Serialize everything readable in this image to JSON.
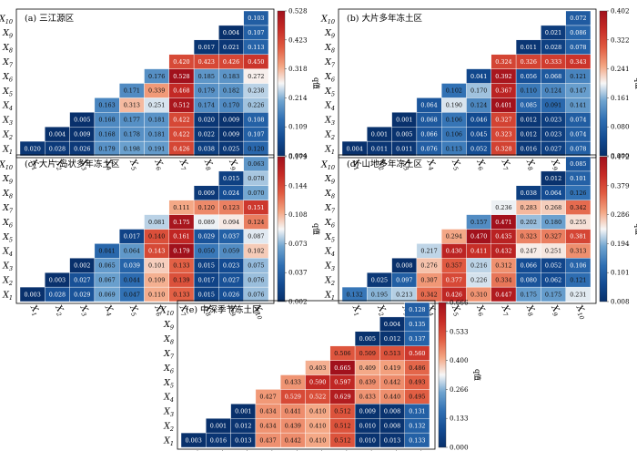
{
  "variable_labels": [
    "X1",
    "X2",
    "X3",
    "X4",
    "X5",
    "X6",
    "X7",
    "X8",
    "X9",
    "X10"
  ],
  "colorbar_label": "q值",
  "colormap": {
    "low": "#08306b",
    "mid": "#f7f7f7",
    "high": "#b2182b"
  },
  "chart_data": [
    {
      "type": "heatmap",
      "title": "(a) 三江源区",
      "variables": [
        "X1",
        "X2",
        "X3",
        "X4",
        "X5",
        "X6",
        "X7",
        "X8",
        "X9",
        "X10"
      ],
      "colorbar": {
        "min": 0.004,
        "max": 0.528,
        "ticks": [
          "0.004",
          "0.109",
          "0.214",
          "0.318",
          "0.423",
          "0.528"
        ],
        "label": "q值"
      },
      "matrix": [
        [
          "0.020",
          "0.028",
          "0.026",
          "0.179",
          "0.198",
          "0.191",
          "0.426",
          "0.038",
          "0.025",
          "0.120"
        ],
        [
          null,
          "0.004",
          "0.009",
          "0.168",
          "0.178",
          "0.181",
          "0.422",
          "0.022",
          "0.009",
          "0.107"
        ],
        [
          null,
          null,
          "0.005",
          "0.168",
          "0.177",
          "0.181",
          "0.422",
          "0.020",
          "0.009",
          "0.108"
        ],
        [
          null,
          null,
          null,
          "0.163",
          "0.313",
          "0.251",
          "0.512",
          "0.174",
          "0.170",
          "0.226"
        ],
        [
          null,
          null,
          null,
          null,
          "0.171",
          "0.339",
          "0.468",
          "0.179",
          "0.182",
          "0.238"
        ],
        [
          null,
          null,
          null,
          null,
          null,
          "0.176",
          "0.528",
          "0.185",
          "0.183",
          "0.272"
        ],
        [
          null,
          null,
          null,
          null,
          null,
          null,
          "0.420",
          "0.423",
          "0.426",
          "0.450"
        ],
        [
          null,
          null,
          null,
          null,
          null,
          null,
          null,
          "0.017",
          "0.021",
          "0.113"
        ],
        [
          null,
          null,
          null,
          null,
          null,
          null,
          null,
          null,
          "0.004",
          "0.107"
        ],
        [
          null,
          null,
          null,
          null,
          null,
          null,
          null,
          null,
          null,
          "0.103"
        ]
      ]
    },
    {
      "type": "heatmap",
      "title": "(b) 大片多年冻土区",
      "variables": [
        "X1",
        "X2",
        "X3",
        "X4",
        "X5",
        "X6",
        "X7",
        "X8",
        "X9",
        "X10"
      ],
      "colorbar": {
        "min": 0.0,
        "max": 0.402,
        "ticks": [
          "0.000",
          "0.080",
          "0.161",
          "0.241",
          "0.322",
          "0.402"
        ],
        "label": "q值"
      },
      "matrix": [
        [
          "0.004",
          "0.011",
          "0.011",
          "0.076",
          "0.113",
          "0.052",
          "0.328",
          "0.016",
          "0.027",
          "0.078"
        ],
        [
          null,
          "0.001",
          "0.005",
          "0.066",
          "0.106",
          "0.045",
          "0.323",
          "0.012",
          "0.023",
          "0.074"
        ],
        [
          null,
          null,
          "0.001",
          "0.068",
          "0.106",
          "0.046",
          "0.327",
          "0.012",
          "0.023",
          "0.074"
        ],
        [
          null,
          null,
          null,
          "0.064",
          "0.190",
          "0.124",
          "0.401",
          "0.085",
          "0.091",
          "0.141"
        ],
        [
          null,
          null,
          null,
          null,
          "0.102",
          "0.170",
          "0.367",
          "0.110",
          "0.124",
          "0.147"
        ],
        [
          null,
          null,
          null,
          null,
          null,
          "0.041",
          "0.392",
          "0.056",
          "0.068",
          "0.121"
        ],
        [
          null,
          null,
          null,
          null,
          null,
          null,
          "0.324",
          "0.326",
          "0.333",
          "0.343"
        ],
        [
          null,
          null,
          null,
          null,
          null,
          null,
          null,
          "0.011",
          "0.028",
          "0.078"
        ],
        [
          null,
          null,
          null,
          null,
          null,
          null,
          null,
          null,
          "0.021",
          "0.086"
        ],
        [
          null,
          null,
          null,
          null,
          null,
          null,
          null,
          null,
          null,
          "0.072"
        ]
      ]
    },
    {
      "type": "heatmap",
      "title": "(c) 大片-岛状多年冻土区",
      "variables": [
        "X1",
        "X2",
        "X3",
        "X4",
        "X5",
        "X6",
        "X7",
        "X8",
        "X9",
        "X10"
      ],
      "colorbar": {
        "min": 0.002,
        "max": 0.179,
        "ticks": [
          "0.002",
          "0.037",
          "0.073",
          "0.108",
          "0.144",
          "0.179"
        ],
        "label": "q值"
      },
      "matrix": [
        [
          "0.003",
          "0.028",
          "0.029",
          "0.069",
          "0.047",
          "0.110",
          "0.133",
          "0.015",
          "0.026",
          "0.076"
        ],
        [
          null,
          "0.003",
          "0.027",
          "0.067",
          "0.044",
          "0.109",
          "0.139",
          "0.017",
          "0.027",
          "0.076"
        ],
        [
          null,
          null,
          "0.002",
          "0.065",
          "0.039",
          "0.101",
          "0.133",
          "0.015",
          "0.023",
          "0.075"
        ],
        [
          null,
          null,
          null,
          "0.041",
          "0.064",
          "0.143",
          "0.179",
          "0.050",
          "0.059",
          "0.102"
        ],
        [
          null,
          null,
          null,
          null,
          "0.017",
          "0.140",
          "0.161",
          "0.029",
          "0.037",
          "0.087"
        ],
        [
          null,
          null,
          null,
          null,
          null,
          "0.081",
          "0.175",
          "0.089",
          "0.094",
          "0.124"
        ],
        [
          null,
          null,
          null,
          null,
          null,
          null,
          "0.111",
          "0.120",
          "0.123",
          "0.151"
        ],
        [
          null,
          null,
          null,
          null,
          null,
          null,
          null,
          "0.009",
          "0.024",
          "0.070"
        ],
        [
          null,
          null,
          null,
          null,
          null,
          null,
          null,
          null,
          "0.015",
          "0.078"
        ],
        [
          null,
          null,
          null,
          null,
          null,
          null,
          null,
          null,
          null,
          "0.063"
        ]
      ]
    },
    {
      "type": "heatmap",
      "title": "(d) 山地多年冻土区",
      "variables": [
        "X1",
        "X2",
        "X3",
        "X4",
        "X5",
        "X6",
        "X7",
        "X8",
        "X9",
        "X10"
      ],
      "colorbar": {
        "min": 0.008,
        "max": 0.472,
        "ticks": [
          "0.008",
          "0.101",
          "0.194",
          "0.286",
          "0.379",
          "0.472"
        ],
        "label": "q值"
      },
      "matrix": [
        [
          "0.132",
          "0.195",
          "0.213",
          "0.342",
          "0.426",
          "0.310",
          "0.447",
          "0.175",
          "0.175",
          "0.231"
        ],
        [
          null,
          "0.025",
          "0.097",
          "0.307",
          "0.377",
          "0.226",
          "0.334",
          "0.080",
          "0.062",
          "0.121"
        ],
        [
          null,
          null,
          "0.008",
          "0.276",
          "0.357",
          "0.216",
          "0.312",
          "0.066",
          "0.052",
          "0.106"
        ],
        [
          null,
          null,
          null,
          "0.217",
          "0.430",
          "0.411",
          "0.432",
          "0.247",
          "0.251",
          "0.313"
        ],
        [
          null,
          null,
          null,
          null,
          "0.294",
          "0.470",
          "0.435",
          "0.323",
          "0.327",
          "0.381"
        ],
        [
          null,
          null,
          null,
          null,
          null,
          "0.157",
          "0.471",
          "0.202",
          "0.180",
          "0.255"
        ],
        [
          null,
          null,
          null,
          null,
          null,
          null,
          "0.236",
          "0.283",
          "0.268",
          "0.342"
        ],
        [
          null,
          null,
          null,
          null,
          null,
          null,
          null,
          "0.038",
          "0.064",
          "0.126"
        ],
        [
          null,
          null,
          null,
          null,
          null,
          null,
          null,
          null,
          "0.012",
          "0.101"
        ],
        [
          null,
          null,
          null,
          null,
          null,
          null,
          null,
          null,
          null,
          "0.085"
        ]
      ]
    },
    {
      "type": "heatmap",
      "title": "(e) 中深季节冻土区",
      "variables": [
        "X1",
        "X2",
        "X3",
        "X4",
        "X5",
        "X6",
        "X7",
        "X8",
        "X9",
        "X10"
      ],
      "colorbar": {
        "min": 0.0,
        "max": 0.666,
        "ticks": [
          "0.000",
          "0.133",
          "0.266",
          "0.400",
          "0.533",
          "0.666"
        ],
        "label": "q值"
      },
      "matrix": [
        [
          "0.003",
          "0.016",
          "0.013",
          "0.437",
          "0.442",
          "0.410",
          "0.512",
          "0.010",
          "0.013",
          "0.133"
        ],
        [
          null,
          "0.001",
          "0.012",
          "0.434",
          "0.439",
          "0.410",
          "0.512",
          "0.010",
          "0.008",
          "0.132"
        ],
        [
          null,
          null,
          "0.001",
          "0.434",
          "0.441",
          "0.410",
          "0.512",
          "0.009",
          "0.008",
          "0.131"
        ],
        [
          null,
          null,
          null,
          "0.427",
          "0.529",
          "0.522",
          "0.629",
          "0.433",
          "0.440",
          "0.495"
        ],
        [
          null,
          null,
          null,
          null,
          "0.433",
          "0.590",
          "0.597",
          "0.439",
          "0.442",
          "0.493"
        ],
        [
          null,
          null,
          null,
          null,
          null,
          "0.403",
          "0.665",
          "0.409",
          "0.419",
          "0.486"
        ],
        [
          null,
          null,
          null,
          null,
          null,
          null,
          "0.506",
          "0.509",
          "0.513",
          "0.560"
        ],
        [
          null,
          null,
          null,
          null,
          null,
          null,
          null,
          "0.005",
          "0.012",
          "0.137"
        ],
        [
          null,
          null,
          null,
          null,
          null,
          null,
          null,
          null,
          "0.004",
          "0.135"
        ],
        [
          null,
          null,
          null,
          null,
          null,
          null,
          null,
          null,
          null,
          "0.128"
        ]
      ]
    }
  ]
}
